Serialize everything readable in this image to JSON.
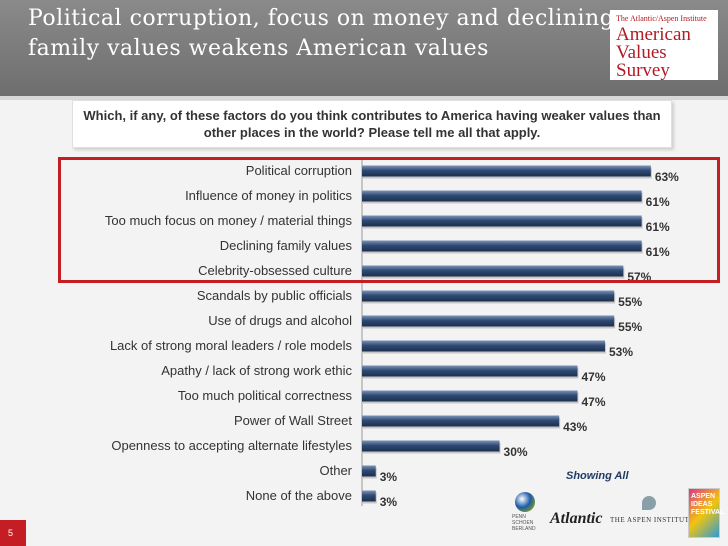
{
  "header": {
    "title": "Political corruption, focus on money and declining family values weakens American values"
  },
  "brand": {
    "subtitle": "The Atlantic/Aspen Institute",
    "line1": "American",
    "line2": "Values",
    "line3": "Survey"
  },
  "question": "Which, if any, of these factors do you think contributes to America having weaker values than other places in the world?  Please tell me all that apply.",
  "note": "Showing All",
  "page_number": "5",
  "logos": {
    "psb": [
      "PENN",
      "SCHOEN",
      "BERLAND"
    ],
    "atlantic": "Atlantic",
    "aspen": "THE ASPEN INSTITUTE",
    "festival": "ASPEN IDEAS FESTIVAL"
  },
  "colors": {
    "bar": "#2f4a73",
    "accent": "#c41e24"
  },
  "chart_data": {
    "type": "bar",
    "orientation": "horizontal",
    "title": "Which, if any, of these factors do you think contributes to America having weaker values than other places in the world?  Please tell me all that apply.",
    "categories": [
      "Political corruption",
      "Influence of money in politics",
      "Too much focus on money / material things",
      "Declining family values",
      "Celebrity-obsessed culture",
      "Scandals by public officials",
      "Use of drugs and alcohol",
      "Lack of strong moral leaders / role models",
      "Apathy / lack of strong work ethic",
      "Too much political correctness",
      "Power of Wall Street",
      "Openness to accepting alternate lifestyles",
      "Other",
      "None of the above"
    ],
    "values": [
      63,
      61,
      61,
      61,
      57,
      55,
      55,
      53,
      47,
      47,
      43,
      30,
      3,
      3
    ],
    "value_labels": [
      "63%",
      "61%",
      "61%",
      "61%",
      "57%",
      "55%",
      "55%",
      "53%",
      "47%",
      "47%",
      "43%",
      "30%",
      "3%",
      "3%"
    ],
    "unit": "%",
    "xlim": [
      0,
      65
    ],
    "highlighted_categories": [
      "Political corruption",
      "Influence of money in politics",
      "Too much focus on money / material things",
      "Declining family values",
      "Celebrity-obsessed culture"
    ],
    "xlabel": "",
    "ylabel": ""
  }
}
